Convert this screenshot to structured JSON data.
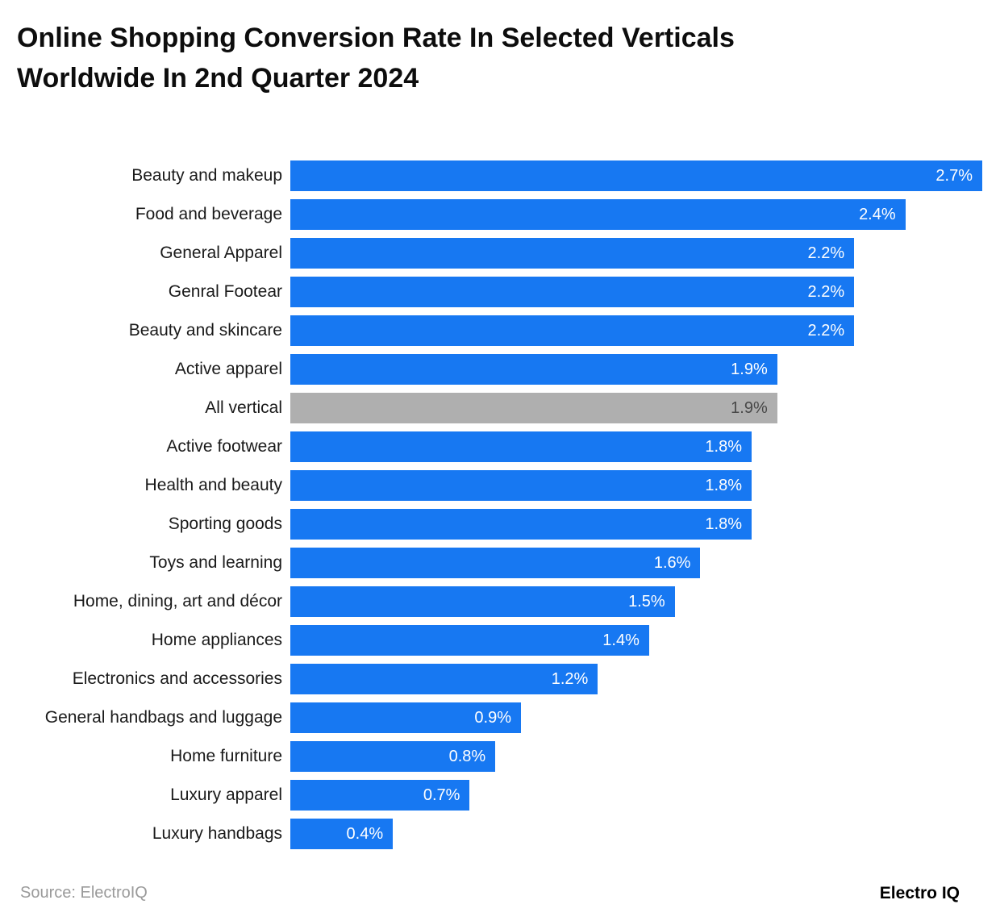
{
  "title": {
    "line1": "Online Shopping Conversion Rate In Selected Verticals",
    "line2": "Worldwide In 2nd Quarter 2024"
  },
  "footer": {
    "source": "Source: ElectroIQ",
    "brand": "Electro IQ"
  },
  "chart_data": {
    "type": "bar",
    "orientation": "horizontal",
    "title": "Online Shopping Conversion Rate In Selected Verticals Worldwide In 2nd Quarter 2024",
    "unit": "%",
    "xlim": [
      0,
      2.7
    ],
    "grid": false,
    "legend": "none",
    "categories": [
      "Beauty and makeup",
      "Food and beverage",
      "General Apparel",
      "Genral Footear",
      "Beauty and skincare",
      "Active apparel",
      "All vertical",
      "Active footwear",
      "Health and beauty",
      "Sporting goods",
      "Toys and learning",
      "Home, dining, art and décor",
      "Home appliances",
      "Electronics and accessories",
      "General handbags and luggage",
      "Home furniture",
      "Luxury apparel",
      "Luxury handbags"
    ],
    "values": [
      2.7,
      2.4,
      2.2,
      2.2,
      2.2,
      1.9,
      1.9,
      1.8,
      1.8,
      1.8,
      1.6,
      1.5,
      1.4,
      1.2,
      0.9,
      0.8,
      0.7,
      0.4
    ],
    "value_labels": [
      "2.7%",
      "2.4%",
      "2.2%",
      "2.2%",
      "2.2%",
      "1.9%",
      "1.9%",
      "1.8%",
      "1.8%",
      "1.8%",
      "1.6%",
      "1.5%",
      "1.4%",
      "1.2%",
      "0.9%",
      "0.8%",
      "0.7%",
      "0.4%"
    ],
    "highlight_index": 6,
    "colors": {
      "bar": "#1778F2",
      "highlight_bar": "#AFAFAF",
      "value_label": "#FFFFFF",
      "highlight_value_label": "#484848"
    }
  }
}
